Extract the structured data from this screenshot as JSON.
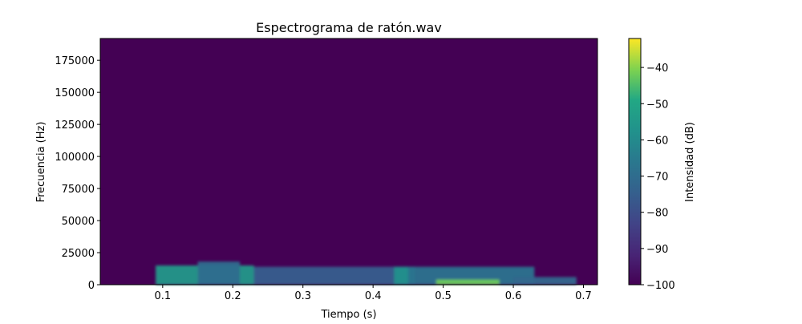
{
  "chart_data": {
    "type": "heatmap",
    "title": "Espectrograma de ratón.wav",
    "xlabel": "Tiempo (s)",
    "ylabel": "Frecuencia (Hz)",
    "colorbar_label": "Intensidad (dB)",
    "colormap": "viridis",
    "xlim": [
      0.011,
      0.72
    ],
    "ylim": [
      0,
      192000
    ],
    "x_ticks": [
      0.1,
      0.2,
      0.3,
      0.4,
      0.5,
      0.6,
      0.7
    ],
    "x_tick_labels": [
      "0.1",
      "0.2",
      "0.3",
      "0.4",
      "0.5",
      "0.6",
      "0.7"
    ],
    "y_ticks": [
      0,
      25000,
      50000,
      75000,
      100000,
      125000,
      150000,
      175000
    ],
    "y_tick_labels": [
      "0",
      "25000",
      "50000",
      "75000",
      "100000",
      "125000",
      "150000",
      "175000"
    ],
    "color_range": [
      -100,
      -32
    ],
    "colorbar_ticks": [
      -100,
      -90,
      -80,
      -70,
      -60,
      -50,
      -40
    ],
    "colorbar_tick_labels": [
      "−100",
      "−90",
      "−80",
      "−70",
      "−60",
      "−50",
      "−40"
    ],
    "background_level": -100,
    "energy_regions": [
      {
        "t_start": 0.09,
        "t_end": 0.23,
        "f_max": 15000,
        "level": -55
      },
      {
        "t_start": 0.15,
        "t_end": 0.21,
        "f_max": 18000,
        "level": -70
      },
      {
        "t_start": 0.23,
        "t_end": 0.45,
        "f_max": 14000,
        "level": -75
      },
      {
        "t_start": 0.43,
        "t_end": 0.46,
        "f_max": 14000,
        "level": -58
      },
      {
        "t_start": 0.45,
        "t_end": 0.63,
        "f_max": 14000,
        "level": -68
      },
      {
        "t_start": 0.49,
        "t_end": 0.58,
        "f_max": 4000,
        "level": -42
      },
      {
        "t_start": 0.6,
        "t_end": 0.69,
        "f_max": 6000,
        "level": -72
      }
    ],
    "grid": false
  }
}
